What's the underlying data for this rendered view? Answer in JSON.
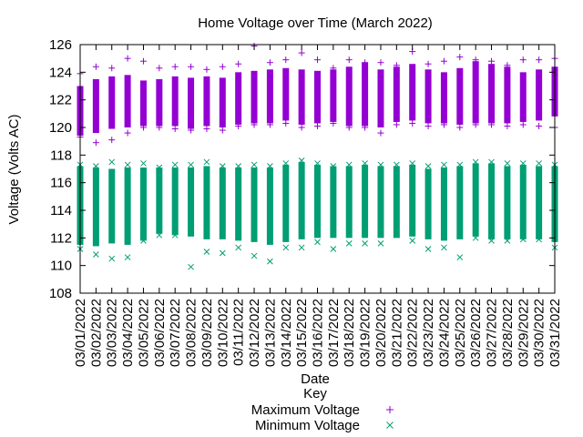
{
  "chart_data": {
    "type": "scatter",
    "title": "Home Voltage over Time (March 2022)",
    "xlabel": "Date",
    "ylabel": "Voltage (Volts AC)",
    "ylim": [
      108,
      126
    ],
    "yticks": [
      108,
      110,
      112,
      114,
      116,
      118,
      120,
      122,
      124,
      126
    ],
    "grid": false,
    "legend_title": "Key",
    "legend_position": "bottom-center",
    "categories": [
      "03/01/2022",
      "03/02/2022",
      "03/03/2022",
      "03/04/2022",
      "03/05/2022",
      "03/06/2022",
      "03/07/2022",
      "03/08/2022",
      "03/09/2022",
      "03/10/2022",
      "03/11/2022",
      "03/12/2022",
      "03/13/2022",
      "03/14/2022",
      "03/15/2022",
      "03/16/2022",
      "03/17/2022",
      "03/18/2022",
      "03/19/2022",
      "03/20/2022",
      "03/21/2022",
      "03/22/2022",
      "03/23/2022",
      "03/24/2022",
      "03/25/2022",
      "03/26/2022",
      "03/27/2022",
      "03/28/2022",
      "03/29/2022",
      "03/30/2022",
      "03/31/2022"
    ],
    "series": [
      {
        "name": "Maximum Voltage",
        "color": "#9400d3",
        "marker": "plus",
        "band_low": [
          119.4,
          119.6,
          119.9,
          120.0,
          120.1,
          120.1,
          120.1,
          119.9,
          120.1,
          120.0,
          120.2,
          120.3,
          120.3,
          120.5,
          120.2,
          120.3,
          120.4,
          120.1,
          120.1,
          120.0,
          120.4,
          120.5,
          120.3,
          120.3,
          120.2,
          120.3,
          120.3,
          120.3,
          120.4,
          120.5,
          120.8
        ],
        "band_high": [
          123.0,
          123.5,
          123.7,
          123.8,
          123.4,
          123.5,
          123.7,
          123.6,
          123.7,
          123.6,
          124.0,
          124.1,
          124.2,
          124.3,
          124.2,
          124.1,
          124.2,
          124.4,
          124.7,
          124.2,
          124.4,
          124.6,
          124.2,
          124.0,
          124.3,
          124.8,
          124.6,
          124.4,
          124.0,
          124.2,
          124.4
        ],
        "outliers_high": [
          123.9,
          124.4,
          124.3,
          125.0,
          124.8,
          124.3,
          124.4,
          124.4,
          124.2,
          124.4,
          124.6,
          125.9,
          124.7,
          124.9,
          125.4,
          124.9,
          124.3,
          124.9,
          124.7,
          124.7,
          124.5,
          125.5,
          124.6,
          124.8,
          125.1,
          124.9,
          124.8,
          124.5,
          124.9,
          124.9,
          125.0
        ],
        "outliers_low": [
          119.3,
          118.9,
          119.1,
          119.6,
          120.0,
          120.0,
          119.9,
          119.8,
          119.9,
          119.8,
          120.1,
          120.2,
          120.2,
          120.3,
          120.0,
          120.1,
          120.3,
          120.0,
          120.0,
          119.6,
          120.2,
          120.3,
          120.1,
          120.2,
          120.0,
          120.2,
          120.2,
          120.1,
          120.2,
          120.1,
          120.0
        ]
      },
      {
        "name": "Minimum Voltage",
        "color": "#009e73",
        "marker": "cross",
        "band_low": [
          111.5,
          111.4,
          111.6,
          111.5,
          111.8,
          112.3,
          112.2,
          112.1,
          111.9,
          111.9,
          111.8,
          111.7,
          111.5,
          111.7,
          111.9,
          112.0,
          112.0,
          112.0,
          112.0,
          112.0,
          112.0,
          112.1,
          111.9,
          111.8,
          111.9,
          112.1,
          111.9,
          111.9,
          111.9,
          111.9,
          111.7
        ],
        "band_high": [
          117.2,
          117.1,
          117.0,
          117.1,
          117.1,
          117.1,
          117.1,
          117.1,
          117.2,
          117.1,
          117.1,
          117.1,
          117.1,
          117.3,
          117.5,
          117.3,
          117.2,
          117.2,
          117.3,
          117.2,
          117.2,
          117.3,
          117.0,
          117.1,
          117.2,
          117.4,
          117.4,
          117.2,
          117.3,
          117.2,
          117.2
        ],
        "outliers_low": [
          111.2,
          110.8,
          110.5,
          110.6,
          111.8,
          112.2,
          112.2,
          109.9,
          111.0,
          110.9,
          111.3,
          110.7,
          110.3,
          111.3,
          111.3,
          111.7,
          111.2,
          111.6,
          111.6,
          111.6,
          112.2,
          111.8,
          111.2,
          111.3,
          110.6,
          112.0,
          111.8,
          111.8,
          111.9,
          111.9,
          111.3
        ],
        "outliers_high": [
          117.3,
          117.2,
          117.5,
          117.3,
          117.4,
          117.1,
          117.3,
          117.3,
          117.5,
          117.2,
          117.2,
          117.3,
          117.2,
          117.4,
          117.6,
          117.4,
          117.2,
          117.3,
          117.4,
          117.3,
          117.3,
          117.4,
          117.2,
          117.3,
          117.3,
          117.5,
          117.5,
          117.4,
          117.4,
          117.4,
          117.3
        ]
      }
    ]
  }
}
